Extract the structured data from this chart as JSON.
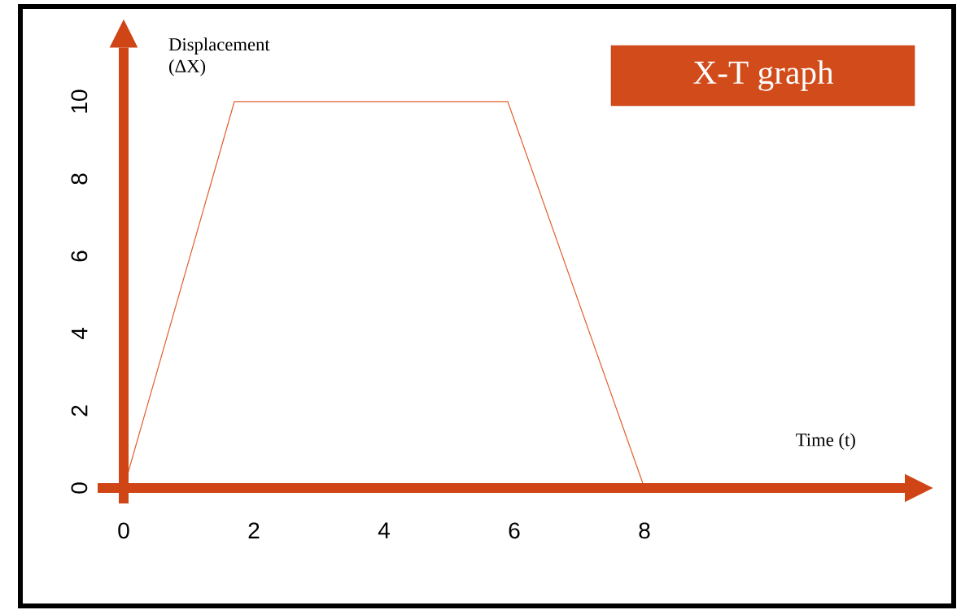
{
  "chart_data": {
    "type": "line",
    "title": "X-T graph",
    "xlabel": "Time (t)",
    "ylabel": "Displacement (ΔX)",
    "series": [
      {
        "color": "#e2602f",
        "x": [
          0,
          1.7,
          5.9,
          8
        ],
        "values": [
          0,
          10,
          10,
          0
        ]
      }
    ],
    "xlim": [
      -0.4,
      12
    ],
    "ylim": [
      -0.4,
      11.4
    ],
    "xticks": [
      0,
      2,
      4,
      6,
      8
    ],
    "yticks": [
      0,
      2,
      4,
      6,
      8,
      10
    ]
  }
}
